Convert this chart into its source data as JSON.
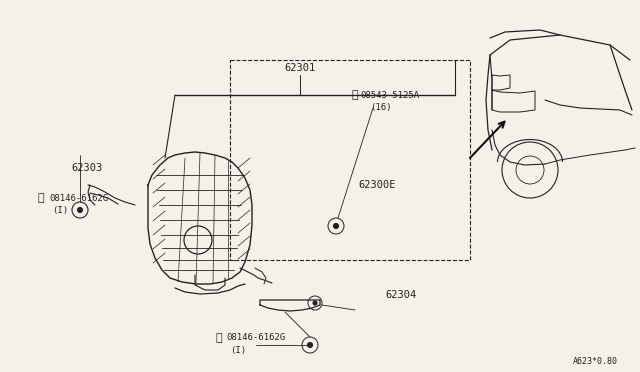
{
  "background_color": "#f5f0e8",
  "fig_width": 6.4,
  "fig_height": 3.72,
  "dpi": 100,
  "line_color": "#222222",
  "label_62301": "62301",
  "label_62303": "62303",
  "label_62300E": "62300E",
  "label_S": "S 08543-5125A\n   (16)",
  "label_B_left": "B 08146-6162G\n      (I)",
  "label_B_bottom": "B 08146-6162G\n      (I)",
  "label_62304": "62304",
  "label_watermark": "A623*0.80",
  "line_width": 0.8
}
